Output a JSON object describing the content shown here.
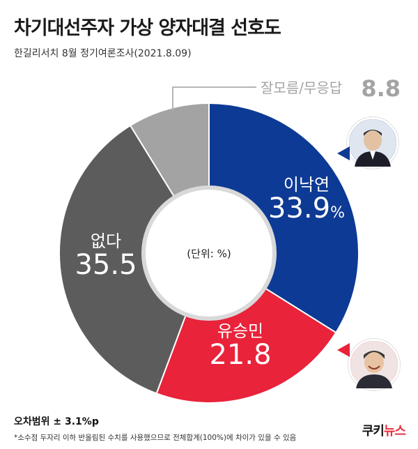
{
  "title": "차기대선주자 가상 양자대결 선호도",
  "subtitle": "한길리서치 8월 정기여론조사(2021.8.09)",
  "footer": {
    "margin_of_error": "오차범위 ± 3.1%p",
    "note": "*소수점 두자리 이하 반올림된 수치를 사용했으므로 전체합계(100%)에 차이가 있을 수 있음"
  },
  "logo": {
    "part1": "쿠키",
    "part2": "뉴스"
  },
  "chart_data": {
    "type": "pie",
    "variant": "donut",
    "center_label": "(단위: %)",
    "slices": [
      {
        "label": "이낙연",
        "value": 33.9,
        "display": "33.9",
        "unit": "%",
        "color": "#0d3a94"
      },
      {
        "label": "유승민",
        "value": 21.8,
        "display": "21.8",
        "unit": "",
        "color": "#e8233a"
      },
      {
        "label": "없다",
        "value": 35.5,
        "display": "35.5",
        "unit": "",
        "color": "#5c5c5c"
      },
      {
        "label": "잘모름/무응답",
        "value": 8.8,
        "display": "8.8",
        "unit": "",
        "color": "#a3a3a3"
      }
    ]
  },
  "icons": {
    "lee_avatar": "person-photo-icon",
    "yoo_avatar": "person-photo-icon"
  }
}
